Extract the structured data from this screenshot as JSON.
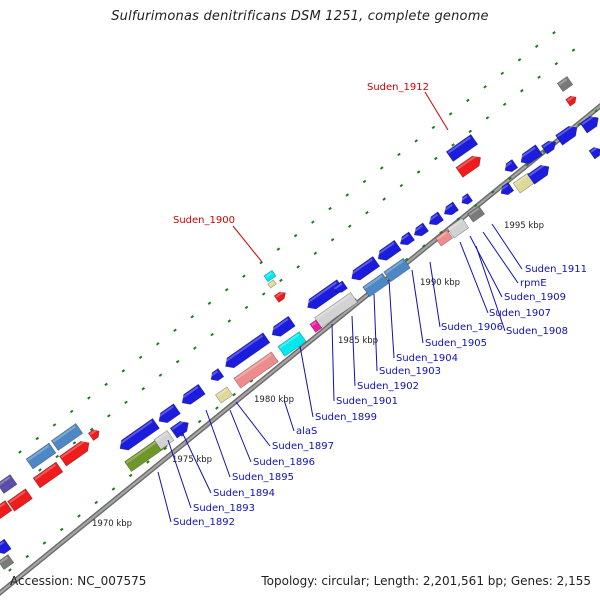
{
  "title": "Sulfurimonas denitrificans DSM 1251, complete genome",
  "footer": {
    "accession": "Accession: NC_007575",
    "summary": "Topology: circular; Length: 2,201,561 bp; Genes: 2,155"
  },
  "colors": {
    "cds": "#1c1cdc",
    "rna": "#ee1c1c",
    "steel": "#4e88c4",
    "silver": "#d2d2d2",
    "pink": "#ec8c8c",
    "cyan": "#00e8f0",
    "khaki": "#ded89a",
    "olive": "#6f962a",
    "gray": "#7a7a7a",
    "magenta": "#ec1c9c",
    "purple": "#5c4ea8",
    "backbone": "#8c8c8c",
    "tick": "#1e7a1e",
    "label_blue": "#1010b8",
    "label_red": "#d40000"
  },
  "kbp_marks": [
    {
      "label": "1970 kbp"
    },
    {
      "label": "1975 kbp"
    },
    {
      "label": "1980 kbp"
    },
    {
      "label": "1985 kbp"
    },
    {
      "label": "1990 kbp"
    },
    {
      "label": "1995 kbp"
    }
  ],
  "gene_labels": [
    {
      "text": "Suden_1912",
      "red": true
    },
    {
      "text": "Suden_1900",
      "red": true
    },
    {
      "text": "Suden_1911"
    },
    {
      "text": "rpmE"
    },
    {
      "text": "Suden_1909"
    },
    {
      "text": "Suden_1907"
    },
    {
      "text": "Suden_1908"
    },
    {
      "text": "Suden_1906"
    },
    {
      "text": "Suden_1905"
    },
    {
      "text": "Suden_1904"
    },
    {
      "text": "Suden_1903"
    },
    {
      "text": "Suden_1902"
    },
    {
      "text": "Suden_1901"
    },
    {
      "text": "Suden_1899"
    },
    {
      "text": "alaS"
    },
    {
      "text": "Suden_1897"
    },
    {
      "text": "Suden_1896"
    },
    {
      "text": "Suden_1895"
    },
    {
      "text": "Suden_1894"
    },
    {
      "text": "Suden_1893"
    },
    {
      "text": "Suden_1892"
    }
  ]
}
